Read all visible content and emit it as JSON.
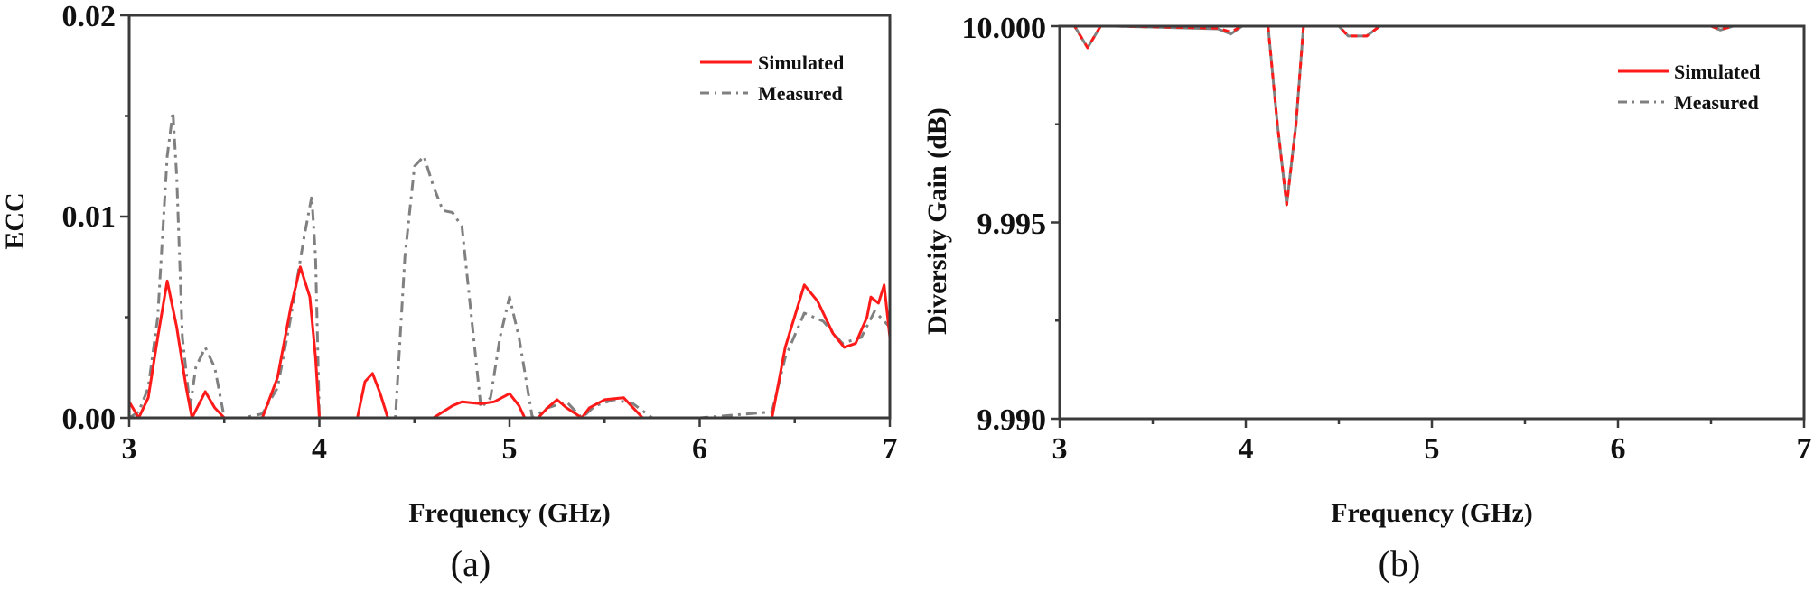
{
  "figure": {
    "panel_a": {
      "caption": "(a)",
      "title": "",
      "xlabel": "Frequency (GHz)",
      "ylabel": "ECC",
      "xticks": [
        "3",
        "4",
        "5",
        "6",
        "7"
      ],
      "yticks": [
        "0.00",
        "0.01",
        "0.02"
      ],
      "legend": [
        {
          "label": "Simulated",
          "color": "#ff1a1a",
          "style": "solid"
        },
        {
          "label": "Measured",
          "color": "#808080",
          "style": "dash-dot"
        }
      ]
    },
    "panel_b": {
      "caption": "(b)",
      "title": "",
      "xlabel": "Frequency (GHz)",
      "ylabel": "Diversity Gain (dB)",
      "xticks": [
        "3",
        "4",
        "5",
        "6",
        "7"
      ],
      "yticks": [
        "9.990",
        "9.995",
        "10.000"
      ],
      "legend": [
        {
          "label": "Simulated",
          "color": "#ff1a1a",
          "style": "solid"
        },
        {
          "label": "Measured",
          "color": "#808080",
          "style": "dash-dot"
        }
      ]
    }
  },
  "chart_data": [
    {
      "type": "line",
      "title": "",
      "caption": "(a)",
      "xlabel": "Frequency (GHz)",
      "ylabel": "ECC",
      "xlim": [
        3,
        7
      ],
      "ylim": [
        0,
        0.02
      ],
      "xticks": [
        3,
        4,
        5,
        6,
        7
      ],
      "yticks": [
        0,
        0.01,
        0.02
      ],
      "grid": false,
      "legend_position": "upper right",
      "series": [
        {
          "name": "Simulated",
          "color": "#ff1a1a",
          "style": "solid",
          "x": [
            3.0,
            3.05,
            3.1,
            3.15,
            3.2,
            3.25,
            3.3,
            3.33,
            3.4,
            3.45,
            3.5,
            3.7,
            3.78,
            3.85,
            3.9,
            3.95,
            3.98,
            4.0,
            4.2,
            4.24,
            4.28,
            4.32,
            4.36,
            4.6,
            4.7,
            4.75,
            4.85,
            4.92,
            5.0,
            5.05,
            5.08,
            5.15,
            5.2,
            5.25,
            5.3,
            5.38,
            5.42,
            5.5,
            5.6,
            5.65,
            5.7,
            6.38,
            6.45,
            6.55,
            6.62,
            6.7,
            6.76,
            6.82,
            6.88,
            6.9,
            6.94,
            6.97,
            7.0
          ],
          "y": [
            0.0008,
            0.0,
            0.001,
            0.004,
            0.0068,
            0.0045,
            0.0015,
            0.0,
            0.0013,
            0.0005,
            0.0,
            0.0,
            0.002,
            0.0055,
            0.0075,
            0.006,
            0.003,
            0.0,
            0.0,
            0.0018,
            0.0022,
            0.0012,
            0.0,
            0.0,
            0.0006,
            0.0008,
            0.0007,
            0.0008,
            0.0012,
            0.0006,
            0.0,
            0.0,
            0.0005,
            0.0009,
            0.0005,
            0.0,
            0.0005,
            0.0009,
            0.001,
            0.0005,
            0.0,
            0.0,
            0.0035,
            0.0066,
            0.0058,
            0.0042,
            0.0035,
            0.0037,
            0.005,
            0.006,
            0.0057,
            0.0066,
            0.004
          ]
        },
        {
          "name": "Measured",
          "color": "#808080",
          "style": "dash-dot",
          "x": [
            3.0,
            3.05,
            3.1,
            3.15,
            3.2,
            3.23,
            3.25,
            3.28,
            3.32,
            3.35,
            3.4,
            3.45,
            3.5,
            3.6,
            3.7,
            3.78,
            3.85,
            3.92,
            3.96,
            3.98,
            4.0,
            4.02,
            4.4,
            4.45,
            4.5,
            4.55,
            4.6,
            4.65,
            4.7,
            4.75,
            4.8,
            4.85,
            4.9,
            4.95,
            5.0,
            5.05,
            5.12,
            5.2,
            5.3,
            5.38,
            5.45,
            5.55,
            5.65,
            5.75,
            6.0,
            6.38,
            6.45,
            6.55,
            6.65,
            6.75,
            6.85,
            6.92,
            7.0
          ],
          "y": [
            0.0,
            0.0003,
            0.0015,
            0.005,
            0.013,
            0.0152,
            0.012,
            0.004,
            0.0005,
            0.0025,
            0.0035,
            0.0025,
            0.0,
            0.0,
            0.0002,
            0.0015,
            0.005,
            0.009,
            0.011,
            0.008,
            0.0,
            0.0,
            0.0,
            0.008,
            0.0125,
            0.013,
            0.0115,
            0.0103,
            0.0102,
            0.0095,
            0.005,
            0.0005,
            0.001,
            0.004,
            0.006,
            0.004,
            0.0,
            0.0005,
            0.0008,
            0.0,
            0.0006,
            0.0009,
            0.0007,
            0.0,
            0.0,
            0.0003,
            0.003,
            0.0052,
            0.0048,
            0.0037,
            0.004,
            0.0053,
            0.0045
          ]
        }
      ]
    },
    {
      "type": "line",
      "title": "",
      "caption": "(b)",
      "xlabel": "Frequency (GHz)",
      "ylabel": "Diversity Gain (dB)",
      "xlim": [
        3,
        7
      ],
      "ylim": [
        9.99,
        10.0
      ],
      "xticks": [
        3,
        4,
        5,
        6,
        7
      ],
      "yticks": [
        9.99,
        9.995,
        10.0
      ],
      "grid": false,
      "legend_position": "upper right",
      "series": [
        {
          "name": "Simulated",
          "color": "#ff1a1a",
          "style": "dash (overlaps measured)",
          "x": [
            3.0,
            3.08,
            3.15,
            3.22,
            3.3,
            3.85,
            3.92,
            3.98,
            4.12,
            4.17,
            4.22,
            4.27,
            4.31,
            4.5,
            4.55,
            4.65,
            4.72,
            6.5,
            6.55,
            6.62,
            7.0
          ],
          "y": [
            10.0,
            10.0,
            9.99945,
            10.0,
            10.0,
            9.99995,
            9.99985,
            10.0,
            10.0,
            9.9975,
            9.99545,
            9.9975,
            10.0,
            10.0,
            9.99975,
            9.99975,
            10.0,
            10.0,
            9.99992,
            10.0,
            10.0
          ]
        },
        {
          "name": "Measured",
          "color": "#808080",
          "style": "solid gray (underlying)",
          "x": [
            3.0,
            3.08,
            3.15,
            3.22,
            3.3,
            3.85,
            3.92,
            3.98,
            4.12,
            4.17,
            4.22,
            4.27,
            4.31,
            4.5,
            4.55,
            4.65,
            4.72,
            6.5,
            6.55,
            6.62,
            7.0
          ],
          "y": [
            10.0,
            10.0,
            9.99945,
            10.0,
            10.0,
            9.99993,
            9.9998,
            10.0,
            10.0,
            9.9975,
            9.99545,
            9.9975,
            10.0,
            10.0,
            9.99975,
            9.99975,
            10.0,
            10.0,
            9.9999,
            10.0,
            10.0
          ]
        }
      ]
    }
  ]
}
